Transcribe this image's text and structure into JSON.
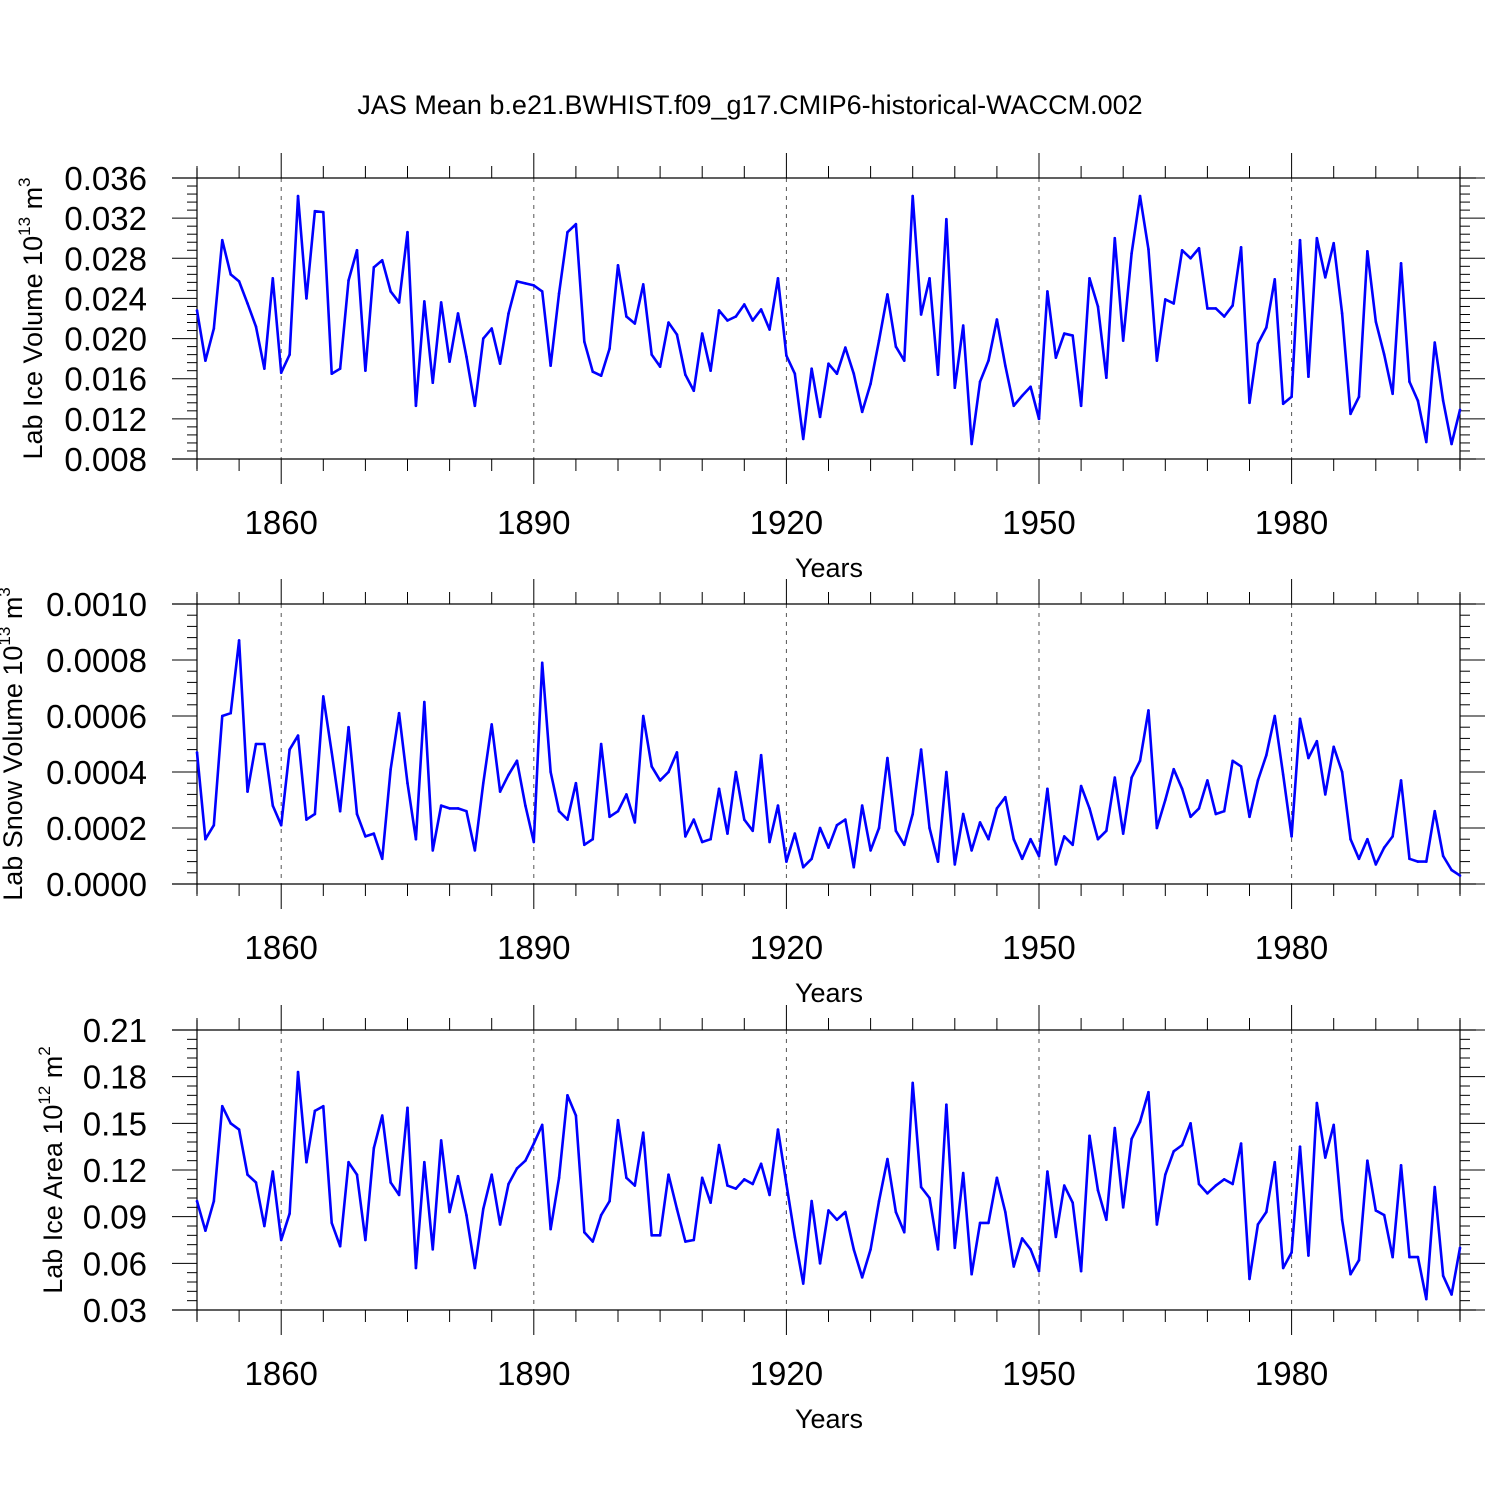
{
  "figure": {
    "title": "JAS Mean b.e21.BWHIST.f09_g17.CMIP6-historical-WACCM.002"
  },
  "colors": {
    "series": "#0000ff",
    "axis": "#000000",
    "grid": "#555555"
  },
  "chart_data": [
    {
      "type": "line",
      "ylabel": {
        "main": "Lab Ice Volume 10",
        "exp": "13",
        "unit": " m",
        "unit_exp": "3"
      },
      "xlabel": "Years",
      "xlim": [
        1850,
        2000
      ],
      "ylim": [
        0.008,
        0.036
      ],
      "yticks": [
        0.008,
        0.012,
        0.016,
        0.02,
        0.024,
        0.028,
        0.032,
        0.036
      ],
      "ytick_labels": [
        "0.008",
        "0.012",
        "0.016",
        "0.020",
        "0.024",
        "0.028",
        "0.032",
        "0.036"
      ],
      "xticks": [
        1860,
        1890,
        1920,
        1950,
        1980
      ],
      "xtick_labels": [
        "1860",
        "1890",
        "1920",
        "1950",
        "1980"
      ],
      "grid": "x-dashed",
      "series": [
        {
          "name": "Lab Ice Volume",
          "x_start": 1850,
          "values": [
            0.0228,
            0.0178,
            0.021,
            0.0298,
            0.0264,
            0.0257,
            0.0235,
            0.0212,
            0.017,
            0.026,
            0.0166,
            0.0184,
            0.0342,
            0.024,
            0.0327,
            0.0326,
            0.0165,
            0.017,
            0.0258,
            0.0288,
            0.0168,
            0.0271,
            0.0278,
            0.0247,
            0.0236,
            0.0306,
            0.0133,
            0.0237,
            0.0156,
            0.0236,
            0.0177,
            0.0225,
            0.0182,
            0.0133,
            0.02,
            0.021,
            0.0175,
            0.0225,
            0.0257,
            0.0255,
            0.0253,
            0.0247,
            0.0173,
            0.0245,
            0.0306,
            0.0314,
            0.0197,
            0.0167,
            0.0163,
            0.019,
            0.0273,
            0.0222,
            0.0215,
            0.0254,
            0.0184,
            0.0172,
            0.0216,
            0.0204,
            0.0164,
            0.0148,
            0.0205,
            0.0168,
            0.0228,
            0.0218,
            0.0222,
            0.0234,
            0.0218,
            0.0229,
            0.0209,
            0.026,
            0.0183,
            0.0165,
            0.01,
            0.017,
            0.0122,
            0.0175,
            0.0165,
            0.0191,
            0.0165,
            0.0127,
            0.0155,
            0.0198,
            0.0244,
            0.0192,
            0.0178,
            0.0342,
            0.0224,
            0.026,
            0.0164,
            0.0319,
            0.0151,
            0.0213,
            0.0095,
            0.0157,
            0.0178,
            0.0219,
            0.0173,
            0.0133,
            0.0143,
            0.0152,
            0.012,
            0.0247,
            0.0181,
            0.0205,
            0.0203,
            0.0133,
            0.026,
            0.0232,
            0.0161,
            0.03,
            0.0198,
            0.0285,
            0.0342,
            0.0289,
            0.0178,
            0.0239,
            0.0235,
            0.0288,
            0.028,
            0.029,
            0.023,
            0.023,
            0.0222,
            0.0233,
            0.0291,
            0.0136,
            0.0195,
            0.0211,
            0.0259,
            0.0135,
            0.0142,
            0.0298,
            0.0162,
            0.03,
            0.0261,
            0.0295,
            0.0225,
            0.0125,
            0.0142,
            0.0287,
            0.0217,
            0.0184,
            0.0145,
            0.0275,
            0.0157,
            0.0138,
            0.0097,
            0.0196,
            0.0138,
            0.0095,
            0.0129
          ]
        }
      ]
    },
    {
      "type": "line",
      "ylabel": {
        "main": "Lab Snow Volume 10",
        "exp": "13",
        "unit": " m",
        "unit_exp": "3"
      },
      "xlabel": "Years",
      "xlim": [
        1850,
        2000
      ],
      "ylim": [
        0.0,
        0.001
      ],
      "yticks": [
        0.0,
        0.0002,
        0.0004,
        0.0006,
        0.0008,
        0.001
      ],
      "ytick_labels": [
        "0.0000",
        "0.0002",
        "0.0004",
        "0.0006",
        "0.0008",
        "0.0010"
      ],
      "xticks": [
        1860,
        1890,
        1920,
        1950,
        1980
      ],
      "xtick_labels": [
        "1860",
        "1890",
        "1920",
        "1950",
        "1980"
      ],
      "grid": "x-dashed",
      "series": [
        {
          "name": "Lab Snow Volume",
          "x_start": 1850,
          "values": [
            0.00047,
            0.00016,
            0.00021,
            0.0006,
            0.00061,
            0.00087,
            0.00033,
            0.0005,
            0.0005,
            0.00028,
            0.00021,
            0.00048,
            0.00053,
            0.00023,
            0.00025,
            0.00067,
            0.00047,
            0.00026,
            0.00056,
            0.00025,
            0.00017,
            0.00018,
            9e-05,
            0.00041,
            0.00061,
            0.00036,
            0.00016,
            0.00065,
            0.00012,
            0.00028,
            0.00027,
            0.00027,
            0.00026,
            0.00012,
            0.00036,
            0.00057,
            0.00033,
            0.00039,
            0.00044,
            0.00028,
            0.00015,
            0.00079,
            0.0004,
            0.00026,
            0.00023,
            0.00036,
            0.00014,
            0.00016,
            0.0005,
            0.00024,
            0.00026,
            0.00032,
            0.00022,
            0.0006,
            0.00042,
            0.00037,
            0.0004,
            0.00047,
            0.00017,
            0.00023,
            0.00015,
            0.00016,
            0.00034,
            0.00018,
            0.0004,
            0.00023,
            0.00019,
            0.00046,
            0.00015,
            0.00028,
            8e-05,
            0.00018,
            6e-05,
            9e-05,
            0.0002,
            0.00013,
            0.00021,
            0.00023,
            6e-05,
            0.00028,
            0.00012,
            0.0002,
            0.00045,
            0.00019,
            0.00014,
            0.00025,
            0.00048,
            0.0002,
            8e-05,
            0.0004,
            7e-05,
            0.00025,
            0.00012,
            0.00022,
            0.00016,
            0.00027,
            0.00031,
            0.00016,
            9e-05,
            0.00016,
            0.0001,
            0.00034,
            7e-05,
            0.00017,
            0.00014,
            0.00035,
            0.00027,
            0.00016,
            0.00019,
            0.00038,
            0.00018,
            0.00038,
            0.00044,
            0.00062,
            0.0002,
            0.0003,
            0.00041,
            0.00034,
            0.00024,
            0.00027,
            0.00037,
            0.00025,
            0.00026,
            0.00044,
            0.00042,
            0.00024,
            0.00037,
            0.00046,
            0.0006,
            0.00039,
            0.00017,
            0.00059,
            0.00045,
            0.00051,
            0.00032,
            0.00049,
            0.0004,
            0.00016,
            9e-05,
            0.00016,
            7e-05,
            0.00013,
            0.00017,
            0.00037,
            9e-05,
            8e-05,
            8e-05,
            0.00026,
            0.0001,
            5e-05,
            3e-05
          ]
        }
      ]
    },
    {
      "type": "line",
      "ylabel": {
        "main": "Lab Ice Area 10",
        "exp": "12",
        "unit": " m",
        "unit_exp": "2"
      },
      "xlabel": "Years",
      "xlim": [
        1850,
        2000
      ],
      "ylim": [
        0.03,
        0.21
      ],
      "yticks": [
        0.03,
        0.06,
        0.09,
        0.12,
        0.15,
        0.18,
        0.21
      ],
      "ytick_labels": [
        "0.03",
        "0.06",
        "0.09",
        "0.12",
        "0.15",
        "0.18",
        "0.21"
      ],
      "xticks": [
        1860,
        1890,
        1920,
        1950,
        1980
      ],
      "xtick_labels": [
        "1860",
        "1890",
        "1920",
        "1950",
        "1980"
      ],
      "grid": "x-dashed",
      "series": [
        {
          "name": "Lab Ice Area",
          "x_start": 1850,
          "values": [
            0.1,
            0.081,
            0.1,
            0.161,
            0.15,
            0.146,
            0.117,
            0.112,
            0.084,
            0.119,
            0.075,
            0.092,
            0.183,
            0.125,
            0.158,
            0.161,
            0.086,
            0.071,
            0.125,
            0.117,
            0.075,
            0.134,
            0.155,
            0.112,
            0.104,
            0.16,
            0.057,
            0.125,
            0.069,
            0.139,
            0.093,
            0.116,
            0.091,
            0.057,
            0.095,
            0.117,
            0.085,
            0.111,
            0.121,
            0.126,
            0.137,
            0.149,
            0.082,
            0.115,
            0.168,
            0.155,
            0.08,
            0.074,
            0.091,
            0.1,
            0.152,
            0.115,
            0.11,
            0.144,
            0.078,
            0.078,
            0.117,
            0.095,
            0.074,
            0.075,
            0.115,
            0.099,
            0.136,
            0.11,
            0.108,
            0.114,
            0.111,
            0.124,
            0.104,
            0.146,
            0.111,
            0.077,
            0.047,
            0.1,
            0.06,
            0.094,
            0.088,
            0.093,
            0.069,
            0.051,
            0.069,
            0.1,
            0.127,
            0.093,
            0.08,
            0.176,
            0.109,
            0.102,
            0.069,
            0.162,
            0.07,
            0.118,
            0.053,
            0.086,
            0.086,
            0.115,
            0.093,
            0.058,
            0.076,
            0.069,
            0.055,
            0.119,
            0.077,
            0.11,
            0.099,
            0.055,
            0.142,
            0.107,
            0.088,
            0.147,
            0.096,
            0.14,
            0.151,
            0.17,
            0.085,
            0.117,
            0.132,
            0.136,
            0.15,
            0.111,
            0.105,
            0.11,
            0.114,
            0.111,
            0.137,
            0.05,
            0.085,
            0.093,
            0.125,
            0.057,
            0.067,
            0.135,
            0.065,
            0.163,
            0.128,
            0.149,
            0.088,
            0.053,
            0.062,
            0.126,
            0.094,
            0.091,
            0.064,
            0.123,
            0.064,
            0.064,
            0.037,
            0.109,
            0.052,
            0.04,
            0.07
          ]
        }
      ]
    }
  ]
}
